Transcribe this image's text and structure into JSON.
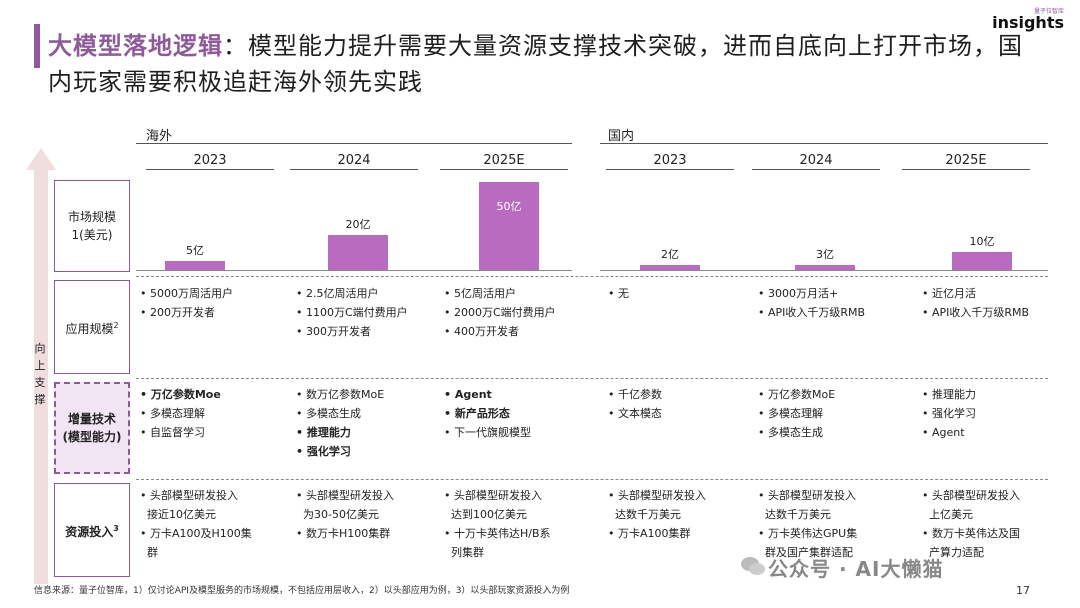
{
  "header": {
    "title_highlight": "大模型落地逻辑",
    "title_rest": "：模型能力提升需要大量资源支撑技术突破，进而自底向上打开市场，国内玩家需要积极追赶海外领先实践",
    "logo_sub": "量子位智库",
    "logo_main": "insights"
  },
  "regions": {
    "overseas": "海外",
    "domestic": "国内"
  },
  "years": [
    "2023",
    "2024",
    "2025E",
    "2023",
    "2024",
    "2025E"
  ],
  "side_label": [
    "向",
    "上",
    "支",
    "撑"
  ],
  "rows": {
    "market": {
      "line1": "市场规模",
      "line2": "1(美元)"
    },
    "application": {
      "label": "应用规模",
      "sup": "2"
    },
    "tech": {
      "line1": "增量技术",
      "line2": "(模型能力)"
    },
    "resource": {
      "label": "资源投入",
      "sup": "3"
    }
  },
  "market_values": [
    {
      "label": "5亿",
      "value": 5
    },
    {
      "label": "20亿",
      "value": 20
    },
    {
      "label": "50亿",
      "value": 50
    },
    {
      "label": "2亿",
      "value": 2
    },
    {
      "label": "3亿",
      "value": 3
    },
    {
      "label": "10亿",
      "value": 10
    }
  ],
  "application_cells": [
    [
      "5000万周活用户",
      "200万开发者"
    ],
    [
      "2.5亿周活用户",
      "1100万C端付费用户",
      "300万开发者"
    ],
    [
      "5亿周活用户",
      "2000万C端付费用户",
      "400万开发者"
    ],
    [
      "无"
    ],
    [
      "3000万月活+",
      "API收入千万级RMB"
    ],
    [
      "近亿月活",
      "API收入千万级RMB"
    ]
  ],
  "tech_cells": [
    [
      "万亿参数Moe",
      "多模态理解",
      "自监督学习"
    ],
    [
      "数万亿参数MoE",
      "多模态生成",
      "推理能力",
      "强化学习"
    ],
    [
      "Agent",
      "新产品形态",
      "下一代旗舰模型"
    ],
    [
      "千亿参数",
      "文本模态"
    ],
    [
      "万亿参数MoE",
      "多模态理解",
      "多模态生成"
    ],
    [
      "推理能力",
      "强化学习",
      "Agent"
    ]
  ],
  "resource_cells": [
    [
      "头部模型研发投入",
      "接近10亿美元",
      "万卡A100及H100集",
      "群"
    ],
    [
      "头部模型研发投入",
      "为30-50亿美元",
      "数万卡H100集群"
    ],
    [
      "头部模型研发投入",
      "达到100亿美元",
      "十万卡英伟达H/B系",
      "列集群"
    ],
    [
      "头部模型研发投入",
      "达数千万美元",
      "万卡A100集群"
    ],
    [
      "头部模型研发投入",
      "达数千万美元",
      "万卡英伟达GPU集",
      "群及国产集群适配"
    ],
    [
      "头部模型研发投入",
      "上亿美元",
      "数万卡英伟达及国",
      "产算力适配"
    ]
  ],
  "footer": "信息来源：量子位智库，1）仅讨论API及模型服务的市场规模，不包括应用层收入，2）以头部应用为例，3）以头部玩家资源投入为例",
  "page_number": "17",
  "watermark": "公众号 · AI大懒猫",
  "colors": {
    "accent": "#8e5a9a",
    "bar": "#b86bbf"
  }
}
